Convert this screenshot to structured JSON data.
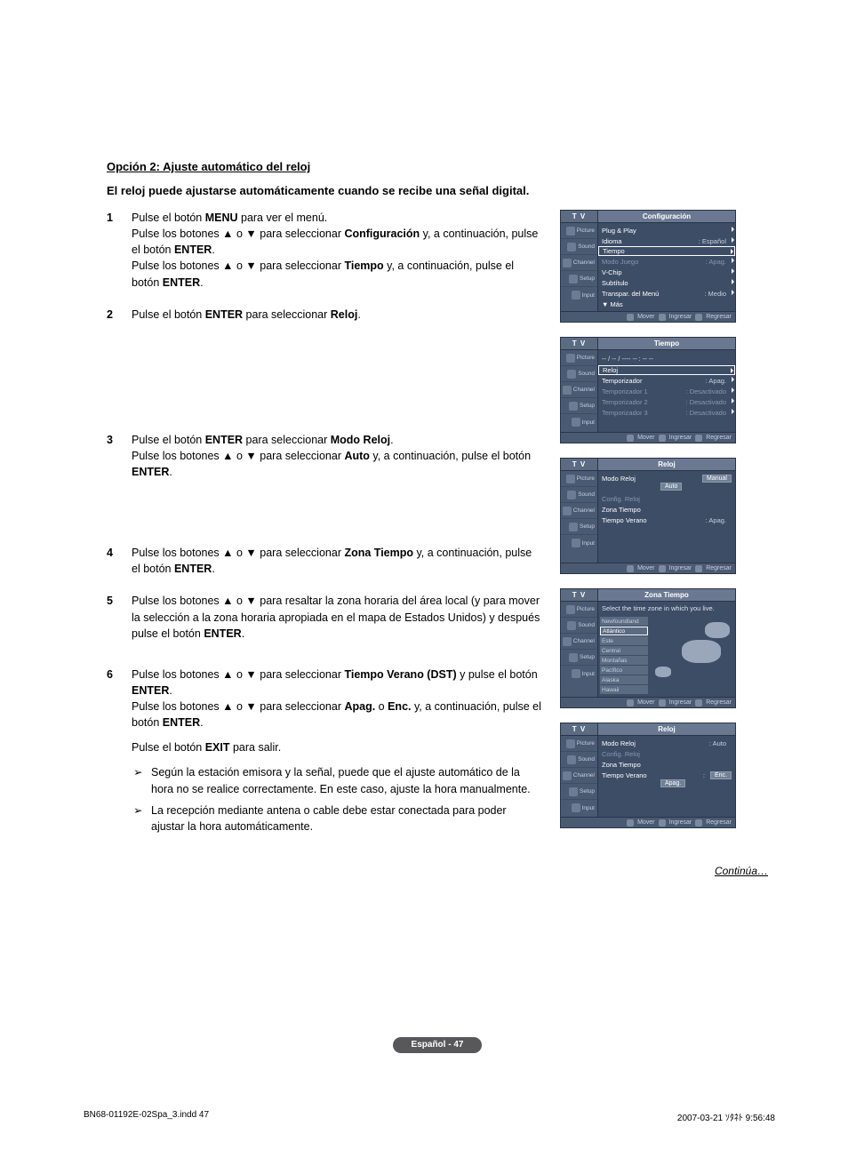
{
  "title": "Opción 2: Ajuste automático del reloj",
  "subtitle": "El reloj puede ajustarse automáticamente cuando se recibe una señal digital.",
  "steps": [
    {
      "num": "1",
      "parts": [
        "Pulse el botón <b>MENU</b> para ver el menú.",
        "Pulse los botones ▲ o ▼ para seleccionar <b>Configuración</b> y, a continuación, pulse el botón <b>ENTER</b>.",
        "Pulse los botones ▲ o ▼ para seleccionar <b>Tiempo</b> y, a continuación, pulse el botón <b>ENTER</b>."
      ]
    },
    {
      "num": "2",
      "parts": [
        "Pulse el botón <b>ENTER</b> para seleccionar <b>Reloj</b>."
      ]
    },
    {
      "num": "3",
      "parts": [
        "Pulse el botón <b>ENTER</b> para seleccionar <b>Modo Reloj</b>.",
        "Pulse los botones ▲ o ▼ para seleccionar <b>Auto</b> y, a continuación, pulse el botón <b>ENTER</b>."
      ]
    },
    {
      "num": "4",
      "parts": [
        "Pulse los botones ▲ o ▼ para seleccionar <b>Zona Tiempo</b> y, a continuación, pulse el botón <b>ENTER</b>."
      ]
    },
    {
      "num": "5",
      "parts": [
        "Pulse los botones ▲ o ▼ para resaltar la zona horaria del área local (y para mover la selección a la zona horaria apropiada en el mapa de Estados Unidos) y después pulse el botón <b>ENTER</b>."
      ]
    },
    {
      "num": "6",
      "parts": [
        "Pulse los botones ▲ o ▼ para seleccionar <b>Tiempo Verano (DST)</b> y pulse el botón <b>ENTER</b>.",
        "Pulse los botones ▲ o ▼ para seleccionar <b>Apag.</b> o <b>Enc.</b> y, a continuación, pulse el botón <b>ENTER</b>.",
        "",
        "Pulse el botón <b>EXIT</b> para salir."
      ]
    }
  ],
  "notes": [
    "Según la estación emisora y la señal, puede que el ajuste automático de la hora no se realice correctamente. En este caso, ajuste la hora manualmente.",
    "La recepción mediante antena o cable debe estar conectada para poder ajustar la hora automáticamente."
  ],
  "note_arrow": "➢",
  "continua": "Continúa…",
  "page_badge": "Español - 47",
  "print_left": "BN68-01192E-02Spa_3.indd   47",
  "print_right": "2007-03-21   ｿﾀﾈﾄ 9:56:48",
  "osd": {
    "tv": "T V",
    "side": [
      "Picture",
      "Sound",
      "Channel",
      "Setup",
      "Input"
    ],
    "footer": {
      "mover": "Mover",
      "ingresar": "Ingresar",
      "regresar": "Regresar"
    },
    "menu1": {
      "title": "Configuración",
      "rows": [
        {
          "lbl": "Plug & Play",
          "chev": true
        },
        {
          "lbl": "Idioma",
          "val": ": Español",
          "chev": true
        },
        {
          "lbl": "Tiempo",
          "sel": true,
          "chev": true
        },
        {
          "lbl": "Modo Juego",
          "val": ": Apag.",
          "dim": true,
          "chev": true
        },
        {
          "lbl": "V-Chip",
          "chev": true
        },
        {
          "lbl": "Subtítulo",
          "chev": true
        },
        {
          "lbl": "Transpar. del Menú",
          "val": ": Medio",
          "chev": true
        },
        {
          "lbl": "▼ Más"
        }
      ]
    },
    "menu2": {
      "title": "Tiempo",
      "hint": "-- / -- / ----  -- : --  --",
      "rows": [
        {
          "lbl": "Reloj",
          "sel": true,
          "chev": true
        },
        {
          "lbl": "Temporizador",
          "val": ": Apag.",
          "chev": true
        },
        {
          "lbl": "Temporizador 1",
          "val": ": Desactivado",
          "dim": true,
          "chev": true
        },
        {
          "lbl": "Temporizador 2",
          "val": ": Desactivado",
          "dim": true,
          "chev": true
        },
        {
          "lbl": "Temporizador 3",
          "val": ": Desactivado",
          "dim": true,
          "chev": true
        }
      ]
    },
    "menu3": {
      "title": "Reloj",
      "rows": [
        {
          "lbl": "Modo Reloj",
          "opt": "Manual",
          "opt2": "Auto"
        },
        {
          "lbl": "Config. Reloj",
          "dim": true
        },
        {
          "lbl": "Zona Tiempo"
        },
        {
          "lbl": "Tiempo Verano",
          "val": ": Apag."
        }
      ]
    },
    "menu4": {
      "title": "Zona Tiempo",
      "hint": "Select the time zone in which you live.",
      "zones": [
        "Newfoundland",
        "Atlántico",
        "Este",
        "Central",
        "Montañas",
        "Pacífico",
        "Alaska",
        "Hawaii"
      ],
      "sel_index": 1
    },
    "menu5": {
      "title": "Reloj",
      "rows": [
        {
          "lbl": "Modo Reloj",
          "val": ": Auto"
        },
        {
          "lbl": "Config. Reloj",
          "dim": true
        },
        {
          "lbl": "Zona Tiempo"
        },
        {
          "lbl": "Tiempo Verano",
          "val": ":",
          "opt": "Enc.",
          "opt2": "Apag."
        }
      ]
    }
  }
}
